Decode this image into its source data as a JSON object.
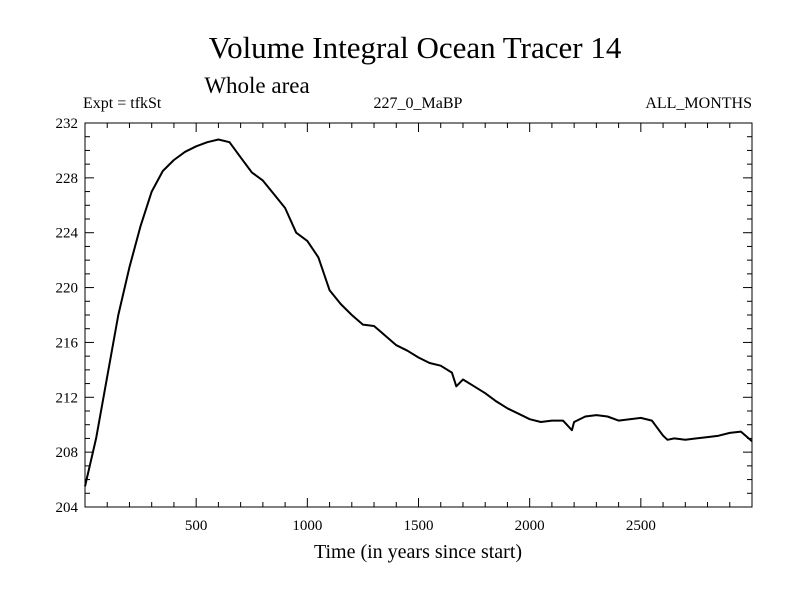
{
  "chart_data": {
    "type": "line",
    "title": "Volume Integral Ocean Tracer 14",
    "subtitle": "Whole area",
    "left_annotation": "Expt = tfkSt",
    "center_annotation": "227_0_MaBP",
    "right_annotation": "ALL_MONTHS",
    "xlabel": "Time (in years since start)",
    "ylabel": "",
    "xlim": [
      0,
      3000
    ],
    "ylim": [
      204,
      232
    ],
    "x_ticks": [
      500,
      1000,
      1500,
      2000,
      2500
    ],
    "y_ticks": [
      204,
      208,
      212,
      216,
      220,
      224,
      228,
      232
    ],
    "x_minor_step": 100,
    "y_minor_step": 1,
    "series": [
      {
        "name": "Tracer 14",
        "x": [
          0,
          50,
          100,
          150,
          200,
          250,
          300,
          350,
          400,
          450,
          500,
          550,
          600,
          650,
          700,
          750,
          800,
          850,
          900,
          950,
          1000,
          1050,
          1100,
          1150,
          1200,
          1250,
          1300,
          1350,
          1400,
          1450,
          1500,
          1550,
          1600,
          1650,
          1670,
          1700,
          1750,
          1800,
          1850,
          1900,
          1950,
          2000,
          2050,
          2100,
          2150,
          2190,
          2200,
          2250,
          2300,
          2350,
          2400,
          2450,
          2500,
          2550,
          2600,
          2620,
          2650,
          2700,
          2750,
          2800,
          2850,
          2900,
          2950,
          3000
        ],
        "y": [
          205.5,
          209.0,
          213.5,
          218.0,
          221.5,
          224.5,
          227.0,
          228.5,
          229.3,
          229.9,
          230.3,
          230.6,
          230.8,
          230.6,
          229.5,
          228.4,
          227.8,
          226.8,
          225.8,
          224.0,
          223.4,
          222.2,
          219.8,
          218.8,
          218.0,
          217.3,
          217.2,
          216.5,
          215.8,
          215.4,
          214.9,
          214.5,
          214.3,
          213.8,
          212.8,
          213.3,
          212.8,
          212.3,
          211.7,
          211.2,
          210.8,
          210.4,
          210.2,
          210.3,
          210.3,
          209.6,
          210.2,
          210.6,
          210.7,
          210.6,
          210.3,
          210.4,
          210.5,
          210.3,
          209.2,
          208.9,
          209.0,
          208.9,
          209.0,
          209.1,
          209.2,
          209.4,
          209.5,
          208.8
        ]
      }
    ]
  }
}
